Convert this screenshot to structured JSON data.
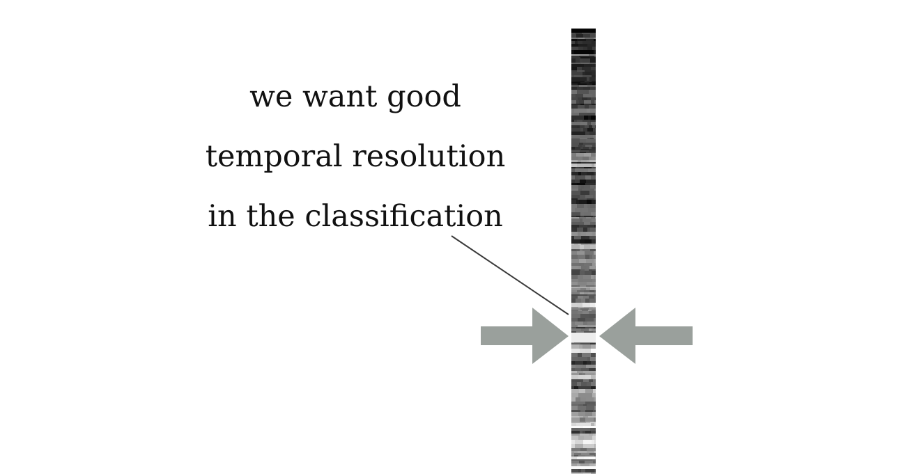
{
  "caption": {
    "lines": [
      "we want good",
      "temporal resolution",
      "in the classification"
    ]
  },
  "colors": {
    "arrow": "#9aa09c",
    "leader_line": "#3a3a3a",
    "text": "#111111",
    "background": "#ffffff"
  },
  "icons": {
    "left_arrow": "arrow-right-icon",
    "right_arrow": "arrow-left-icon"
  }
}
